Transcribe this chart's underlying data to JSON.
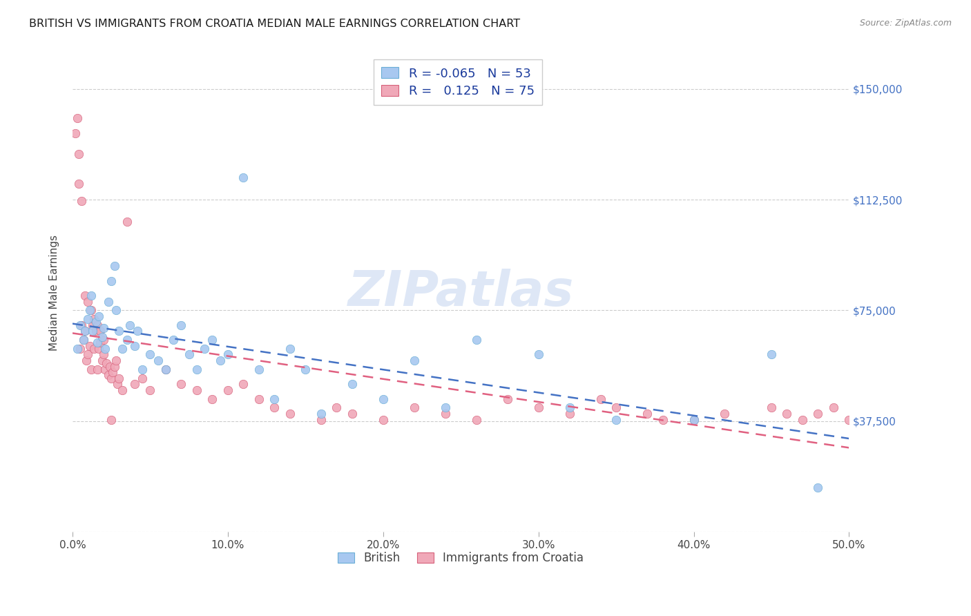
{
  "title": "BRITISH VS IMMIGRANTS FROM CROATIA MEDIAN MALE EARNINGS CORRELATION CHART",
  "source": "Source: ZipAtlas.com",
  "xlabel_ticks": [
    "0.0%",
    "10.0%",
    "20.0%",
    "30.0%",
    "40.0%",
    "50.0%"
  ],
  "xlabel_vals": [
    0,
    10,
    20,
    30,
    40,
    50
  ],
  "ylabel_ticks": [
    0,
    37500,
    75000,
    112500,
    150000
  ],
  "ylabel_labels": [
    "",
    "$37,500",
    "$75,000",
    "$112,500",
    "$150,000"
  ],
  "xmin": 0,
  "xmax": 50,
  "ymin": 0,
  "ymax": 162000,
  "british_color": "#a8c8f0",
  "british_edge": "#6aaed6",
  "croatia_color": "#f0a8b8",
  "croatia_edge": "#d6607a",
  "trend_british_color": "#4472c4",
  "trend_croatia_color": "#e06080",
  "right_axis_color": "#4472c4",
  "legend_text_color": "#1a3a9c",
  "watermark_color": "#c8d8f0",
  "watermark_text": "ZIPatlas",
  "british_R": -0.065,
  "british_N": 53,
  "croatia_R": 0.125,
  "croatia_N": 75,
  "british_x": [
    0.3,
    0.5,
    0.7,
    0.8,
    1.0,
    1.1,
    1.2,
    1.3,
    1.5,
    1.6,
    1.7,
    1.9,
    2.0,
    2.1,
    2.3,
    2.5,
    2.7,
    2.8,
    3.0,
    3.2,
    3.5,
    3.7,
    4.0,
    4.2,
    4.5,
    5.0,
    5.5,
    6.0,
    6.5,
    7.0,
    7.5,
    8.0,
    8.5,
    9.0,
    9.5,
    10.0,
    11.0,
    12.0,
    13.0,
    14.0,
    15.0,
    16.0,
    18.0,
    20.0,
    22.0,
    24.0,
    26.0,
    30.0,
    32.0,
    35.0,
    40.0,
    45.0,
    48.0
  ],
  "british_y": [
    62000,
    70000,
    65000,
    68000,
    72000,
    75000,
    80000,
    68000,
    71000,
    64000,
    73000,
    66000,
    69000,
    62000,
    78000,
    85000,
    90000,
    75000,
    68000,
    62000,
    65000,
    70000,
    63000,
    68000,
    55000,
    60000,
    58000,
    55000,
    65000,
    70000,
    60000,
    55000,
    62000,
    65000,
    58000,
    60000,
    120000,
    55000,
    45000,
    62000,
    55000,
    40000,
    50000,
    45000,
    58000,
    42000,
    65000,
    60000,
    42000,
    38000,
    38000,
    60000,
    15000
  ],
  "croatia_x": [
    0.2,
    0.3,
    0.4,
    0.5,
    0.6,
    0.7,
    0.8,
    0.9,
    1.0,
    1.1,
    1.2,
    1.3,
    1.4,
    1.5,
    1.6,
    1.7,
    1.8,
    1.9,
    2.0,
    2.1,
    2.2,
    2.3,
    2.4,
    2.5,
    2.6,
    2.7,
    2.8,
    2.9,
    3.0,
    3.2,
    3.5,
    4.0,
    4.5,
    5.0,
    6.0,
    7.0,
    8.0,
    9.0,
    10.0,
    11.0,
    12.0,
    13.0,
    14.0,
    16.0,
    17.0,
    18.0,
    20.0,
    22.0,
    24.0,
    26.0,
    28.0,
    30.0,
    32.0,
    34.0,
    35.0,
    37.0,
    38.0,
    40.0,
    42.0,
    45.0,
    46.0,
    47.0,
    48.0,
    49.0,
    50.0,
    0.4,
    0.6,
    0.8,
    1.0,
    1.2,
    1.4,
    1.6,
    1.8,
    2.0,
    2.5
  ],
  "croatia_y": [
    135000,
    140000,
    128000,
    62000,
    70000,
    65000,
    68000,
    58000,
    60000,
    63000,
    55000,
    70000,
    62000,
    68000,
    55000,
    62000,
    64000,
    58000,
    60000,
    55000,
    57000,
    53000,
    56000,
    52000,
    54000,
    56000,
    58000,
    50000,
    52000,
    48000,
    105000,
    50000,
    52000,
    48000,
    55000,
    50000,
    48000,
    45000,
    48000,
    50000,
    45000,
    42000,
    40000,
    38000,
    42000,
    40000,
    38000,
    42000,
    40000,
    38000,
    45000,
    42000,
    40000,
    45000,
    42000,
    40000,
    38000,
    38000,
    40000,
    42000,
    40000,
    38000,
    40000,
    42000,
    38000,
    118000,
    112000,
    80000,
    78000,
    75000,
    72000,
    70000,
    68000,
    65000,
    38000
  ]
}
